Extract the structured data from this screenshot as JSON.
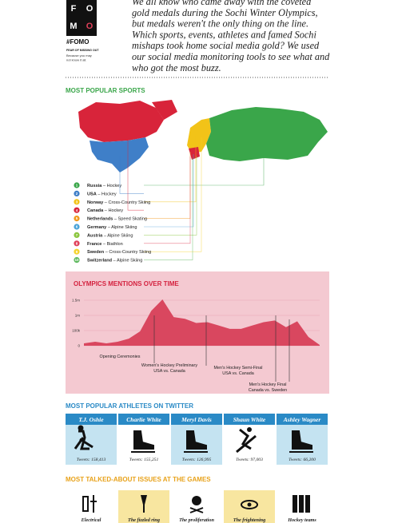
{
  "header": {
    "logo_letters": [
      "F",
      "O",
      "M",
      "O"
    ],
    "hashtag": "#FOMO",
    "tagline": "FEAR OF MISSING OUT",
    "note_lines": [
      "Because you may",
      "not know it all."
    ],
    "intro_lines": [
      "We all know who came away with the coveted",
      "gold medals during the Sochi Winter Olympics,",
      "but medals weren't the only thing on the line.",
      "Which sports, events, athletes and famed Sochi",
      "mishaps took home social media gold? We used",
      "our social media monitoring tools to see what and",
      "who got the most buzz."
    ]
  },
  "sports": {
    "title": "MOST POPULAR SPORTS",
    "items": [
      {
        "number": 1,
        "country": "Russia",
        "sport": " – Hockey",
        "color": "#3aa64a"
      },
      {
        "number": 2,
        "country": "USA",
        "sport": " – Hockey",
        "color": "#3f7fc8"
      },
      {
        "number": 3,
        "country": "Norway",
        "sport": " – Cross-Country Skiing",
        "color": "#f2c318"
      },
      {
        "number": 4,
        "country": "Canada",
        "sport": " – Hockey",
        "color": "#d8243a"
      },
      {
        "number": 5,
        "country": "Netherlands",
        "sport": " – Speed Skating",
        "color": "#f29a1c"
      },
      {
        "number": 6,
        "country": "Germany",
        "sport": " – Alpine Skiing",
        "color": "#4aa3d8"
      },
      {
        "number": 7,
        "country": "Austria",
        "sport": " – Alpine Skiing",
        "color": "#8cc63f"
      },
      {
        "number": 8,
        "country": "France",
        "sport": " – Biathlon",
        "color": "#e0405a"
      },
      {
        "number": 9,
        "country": "Sweden",
        "sport": " – Cross-Country Skiing",
        "color": "#f5d330"
      },
      {
        "number": 10,
        "country": "Switzerland",
        "sport": " – Alpine Skiing",
        "color": "#5cb85c"
      }
    ]
  },
  "chart_data": {
    "type": "area",
    "title": "OLYMPICS MENTIONS OVER TIME",
    "categories": [
      null,
      null,
      null,
      null,
      null,
      null,
      null,
      null,
      null,
      null,
      null,
      null,
      null,
      null,
      null,
      null,
      null,
      null,
      null,
      null,
      null,
      null
    ],
    "values": [
      16000,
      26000,
      16000,
      26000,
      47000,
      95000,
      1150000,
      1525000,
      900000,
      800000,
      550000,
      600000,
      400000,
      200000,
      200000,
      400000,
      600000,
      700000,
      300000,
      650000,
      58000,
      5000
    ],
    "color": "#d9475f",
    "ylim": [
      0,
      1650000
    ],
    "yticks": [
      0,
      {
        "value": 100000,
        "label": "100k"
      },
      {
        "value": 1000000,
        "label": "1m"
      },
      {
        "value": 1500000,
        "label": "1.5m"
      }
    ],
    "grid": true,
    "annotations": [
      {
        "lines": [
          "Opening Ceremonies"
        ]
      },
      {
        "lines": [
          "Women's Hockey Preliminary",
          "USA vs. Canada"
        ]
      },
      {
        "lines": [
          "Men's Hockey Semi-Final",
          "USA vs. Canada"
        ]
      },
      {
        "lines": [
          "Men's Hockey Final",
          "Canada vs. Sweden"
        ]
      }
    ]
  },
  "athletes": {
    "title": "MOST POPULAR ATHLETES ON TWITTER",
    "items": [
      {
        "name": "T.J. Oshie",
        "tweets": "Tweets: 158,413"
      },
      {
        "name": "Charlie White",
        "tweets": "Tweets: 155,251"
      },
      {
        "name": "Meryl Davis",
        "tweets": "Tweets: 126,995"
      },
      {
        "name": "Shaun White",
        "tweets": "Tweets: 97,003"
      },
      {
        "name": "Ashley Wagner",
        "tweets": "Tweets: 66,200"
      }
    ]
  },
  "issues": {
    "title": "MOST TALKED-ABOUT ISSUES AT THE GAMES",
    "items": [
      "Electrical",
      "The fizzled ring",
      "The proliferation",
      "The frightening",
      "Hockey teams"
    ]
  }
}
